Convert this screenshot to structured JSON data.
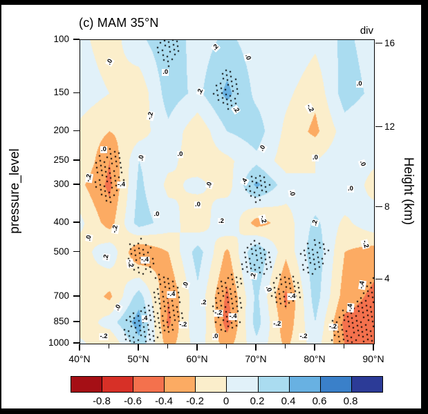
{
  "page": {
    "background": "#000000",
    "panel_background": "#ffffff"
  },
  "header": {
    "title": "(c) MAM 35°N",
    "units_label": "div"
  },
  "axes": {
    "y_left": {
      "label": "pressure_level",
      "ticks": [
        100,
        150,
        200,
        250,
        300,
        400,
        500,
        700,
        850,
        1000
      ],
      "scale": "log"
    },
    "y_right": {
      "label": "Height (km)",
      "ticks": [
        {
          "label": "16",
          "p": 103
        },
        {
          "label": "12",
          "p": 194
        },
        {
          "label": "8",
          "p": 356
        },
        {
          "label": "4",
          "p": 616
        }
      ]
    },
    "x": {
      "range": [
        40,
        90
      ],
      "tick_values": [
        40,
        50,
        60,
        70,
        80,
        90
      ],
      "tick_labels": [
        "40°N",
        "50°N",
        "60°N",
        "70°N",
        "80°N",
        "90°N"
      ],
      "minor_values": [
        45,
        55,
        65,
        75,
        85
      ]
    }
  },
  "colorbar": {
    "labels": [
      "-0.8",
      "-0.6",
      "-0.4",
      "-0.2",
      "0",
      "0.2",
      "0.4",
      "0.6",
      "0.8"
    ],
    "colors": [
      "#a50f15",
      "#d73027",
      "#f4714d",
      "#fcab63",
      "#fbeecb",
      "#e1f1f9",
      "#aadcf0",
      "#68b1e2",
      "#3a80c9",
      "#2c3b97"
    ]
  },
  "chart_data": {
    "type": "heatmap",
    "title": "(c) MAM 35°N",
    "variable": "div",
    "season": "MAM",
    "latitude_band": "35°N",
    "x": [
      40,
      45,
      50,
      55,
      60,
      65,
      70,
      75,
      80,
      85,
      90
    ],
    "x_units": "degrees_north",
    "y": [
      100,
      150,
      200,
      250,
      300,
      400,
      500,
      700,
      850,
      1000
    ],
    "y_units": "hPa",
    "y_scale": "log",
    "levels": [
      -0.8,
      -0.6,
      -0.4,
      -0.2,
      0,
      0.2,
      0.4,
      0.6,
      0.8
    ],
    "values": [
      [
        0.05,
        -0.1,
        0.15,
        0.35,
        0.1,
        0.25,
        0.1,
        0.2,
        0.05,
        0.25,
        0.1
      ],
      [
        0.1,
        0.0,
        -0.15,
        0.3,
        0.15,
        0.45,
        0.15,
        0.05,
        -0.15,
        0.3,
        0.15
      ],
      [
        -0.05,
        -0.2,
        -0.1,
        0.15,
        -0.15,
        0.2,
        0.3,
        -0.05,
        -0.25,
        0.1,
        0.0
      ],
      [
        0.0,
        -0.4,
        0.2,
        0.05,
        -0.1,
        -0.05,
        0.15,
        -0.1,
        0.0,
        0.15,
        0.05
      ],
      [
        -0.15,
        -0.45,
        0.25,
        -0.05,
        0.05,
        -0.1,
        0.45,
        0.1,
        0.0,
        0.2,
        -0.1
      ],
      [
        0.05,
        -0.3,
        0.3,
        0.1,
        -0.15,
        0.2,
        -0.3,
        -0.1,
        0.25,
        -0.05,
        0.15
      ],
      [
        -0.1,
        0.15,
        -0.4,
        -0.2,
        0.3,
        -0.25,
        0.4,
        -0.15,
        0.35,
        -0.2,
        -0.3
      ],
      [
        0.0,
        -0.25,
        0.3,
        -0.4,
        0.15,
        -0.45,
        0.25,
        -0.45,
        0.3,
        -0.3,
        -0.45
      ],
      [
        -0.15,
        0.1,
        0.5,
        -0.45,
        0.2,
        -0.5,
        0.3,
        -0.35,
        0.2,
        -0.45,
        -0.5
      ],
      [
        0.05,
        -0.2,
        0.35,
        -0.3,
        0.1,
        -0.3,
        0.15,
        -0.25,
        0.1,
        -0.4,
        -0.4
      ]
    ],
    "stipple": [
      [
        0,
        0,
        0,
        1,
        0,
        0,
        0,
        0,
        0,
        0,
        0
      ],
      [
        0,
        0,
        0,
        0,
        0,
        1,
        0,
        0,
        0,
        0,
        0
      ],
      [
        0,
        0,
        0,
        0,
        0,
        0,
        0,
        0,
        0,
        0,
        0
      ],
      [
        0,
        1,
        0,
        0,
        0,
        0,
        0,
        0,
        0,
        0,
        0
      ],
      [
        0,
        1,
        0,
        0,
        0,
        0,
        1,
        0,
        0,
        0,
        0
      ],
      [
        0,
        0,
        0,
        0,
        0,
        0,
        0,
        0,
        0,
        0,
        0
      ],
      [
        0,
        0,
        1,
        0,
        0,
        0,
        1,
        0,
        1,
        0,
        0
      ],
      [
        0,
        0,
        0,
        1,
        0,
        1,
        0,
        1,
        0,
        0,
        1
      ],
      [
        0,
        0,
        1,
        1,
        0,
        1,
        0,
        0,
        0,
        1,
        1
      ],
      [
        0,
        0,
        1,
        0,
        0,
        0,
        0,
        0,
        0,
        1,
        1
      ]
    ],
    "contour_labels": [
      {
        "x": 45.0,
        "p": 118,
        "t": ".0",
        "r": -60
      },
      {
        "x": 54.5,
        "p": 128,
        "t": ".0",
        "r": 0
      },
      {
        "x": 63.0,
        "p": 106,
        "t": ".2",
        "r": -45
      },
      {
        "x": 68.5,
        "p": 114,
        "t": ".0",
        "r": 75
      },
      {
        "x": 52.0,
        "p": 178,
        "t": "-.2",
        "r": -75
      },
      {
        "x": 60.5,
        "p": 148,
        "t": ".2",
        "r": -70
      },
      {
        "x": 66.5,
        "p": 170,
        "t": ".2",
        "r": 55
      },
      {
        "x": 79.0,
        "p": 168,
        "t": "-.2",
        "r": 60
      },
      {
        "x": 87.5,
        "p": 140,
        "t": ".0",
        "r": 0
      },
      {
        "x": 44.0,
        "p": 230,
        "t": ".0",
        "r": 0
      },
      {
        "x": 50.5,
        "p": 245,
        "t": ".0",
        "r": -80
      },
      {
        "x": 57.0,
        "p": 238,
        "t": ".0",
        "r": 0
      },
      {
        "x": 71.0,
        "p": 228,
        "t": ".0",
        "r": -60
      },
      {
        "x": 80.0,
        "p": 245,
        "t": ".0",
        "r": 0
      },
      {
        "x": 88.0,
        "p": 255,
        "t": ".0",
        "r": 70
      },
      {
        "x": 41.5,
        "p": 285,
        "t": "-.2",
        "r": -80
      },
      {
        "x": 47.0,
        "p": 300,
        "t": "-.4",
        "r": 0
      },
      {
        "x": 62.0,
        "p": 300,
        "t": ".0",
        "r": -70
      },
      {
        "x": 68.0,
        "p": 292,
        "t": ".4",
        "r": -60
      },
      {
        "x": 76.0,
        "p": 320,
        "t": ".0",
        "r": 80
      },
      {
        "x": 86.0,
        "p": 310,
        "t": ".0",
        "r": 0
      },
      {
        "x": 41.5,
        "p": 450,
        "t": ".0",
        "r": -80
      },
      {
        "x": 46.0,
        "p": 420,
        "t": "-.2",
        "r": -80
      },
      {
        "x": 53.0,
        "p": 375,
        "t": ".0",
        "r": 0
      },
      {
        "x": 60.0,
        "p": 350,
        "t": ".0",
        "r": 0
      },
      {
        "x": 64.0,
        "p": 395,
        "t": ".2",
        "r": 0
      },
      {
        "x": 71.0,
        "p": 390,
        "t": "-.2",
        "r": 75
      },
      {
        "x": 80.0,
        "p": 400,
        "t": ".2",
        "r": -75
      },
      {
        "x": 88.5,
        "p": 470,
        "t": "-.2",
        "r": 75
      },
      {
        "x": 44.5,
        "p": 520,
        "t": ".2",
        "r": -80
      },
      {
        "x": 48.5,
        "p": 545,
        "t": "-.2",
        "r": 80
      },
      {
        "x": 51.0,
        "p": 530,
        "t": "-.4",
        "r": 0
      },
      {
        "x": 55.5,
        "p": 690,
        "t": "-.4",
        "r": 0
      },
      {
        "x": 58.0,
        "p": 640,
        "t": ".0",
        "r": -70
      },
      {
        "x": 46.5,
        "p": 760,
        "t": ".0",
        "r": -60
      },
      {
        "x": 51.0,
        "p": 830,
        "t": ".4",
        "r": 0
      },
      {
        "x": 57.5,
        "p": 868,
        "t": "-.2",
        "r": 0
      },
      {
        "x": 61.0,
        "p": 735,
        "t": ".2",
        "r": 0
      },
      {
        "x": 63.5,
        "p": 795,
        "t": "-.2",
        "r": 0
      },
      {
        "x": 66.0,
        "p": 815,
        "t": "-.4",
        "r": 0
      },
      {
        "x": 69.5,
        "p": 600,
        "t": ".2",
        "r": -80
      },
      {
        "x": 72.0,
        "p": 660,
        "t": ".0",
        "r": 70
      },
      {
        "x": 76.0,
        "p": 700,
        "t": "-.4",
        "r": 0
      },
      {
        "x": 73.5,
        "p": 862,
        "t": "-.2",
        "r": 0
      },
      {
        "x": 83.0,
        "p": 880,
        "t": "-.2",
        "r": 0
      },
      {
        "x": 86.0,
        "p": 760,
        "t": "-.4",
        "r": -85
      },
      {
        "x": 88.0,
        "p": 640,
        "t": "-.4",
        "r": -80
      },
      {
        "x": 63.0,
        "p": 950,
        "t": ".0",
        "r": 0
      },
      {
        "x": 78.0,
        "p": 950,
        "t": "-.2",
        "r": 0
      },
      {
        "x": 44.0,
        "p": 950,
        "t": "-.2",
        "r": 0
      }
    ]
  }
}
